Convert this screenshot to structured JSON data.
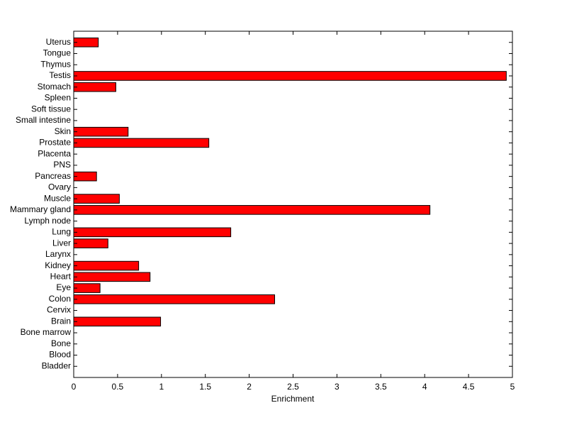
{
  "chart_data": {
    "type": "barh",
    "xlabel": "Enrichment",
    "categories": [
      "Bladder",
      "Blood",
      "Bone",
      "Bone marrow",
      "Brain",
      "Cervix",
      "Colon",
      "Eye",
      "Heart",
      "Kidney",
      "Larynx",
      "Liver",
      "Lung",
      "Lymph node",
      "Mammary gland",
      "Muscle",
      "Ovary",
      "Pancreas",
      "PNS",
      "Placenta",
      "Prostate",
      "Skin",
      "Small intestine",
      "Soft tissue",
      "Spleen",
      "Stomach",
      "Testis",
      "Thymus",
      "Tongue",
      "Uterus"
    ],
    "values": [
      0,
      0,
      0,
      0,
      0.99,
      0,
      2.29,
      0.3,
      0.87,
      0.74,
      0,
      0.39,
      1.79,
      0,
      4.06,
      0.52,
      0,
      0.26,
      0,
      0,
      1.54,
      0.62,
      0,
      0,
      0,
      0.48,
      4.93,
      0,
      0,
      0.28
    ],
    "color": "#ff0000",
    "xlim": [
      0,
      5
    ],
    "xticks": [
      0,
      0.5,
      1,
      1.5,
      2,
      2.5,
      3,
      3.5,
      4,
      4.5,
      5
    ]
  }
}
